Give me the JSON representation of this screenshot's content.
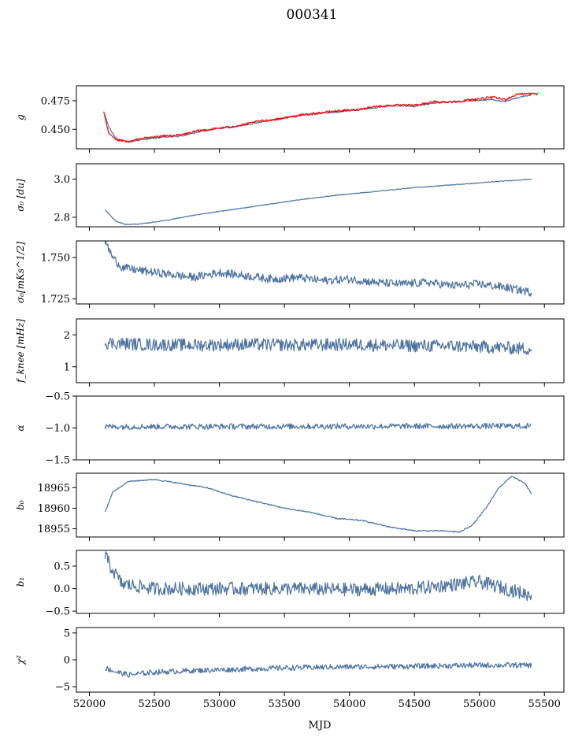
{
  "title": "000341",
  "colors": {
    "primary": "#4c72a0",
    "overlay": "#ff0000"
  },
  "chart_data": {
    "type": "line",
    "title": "000341",
    "xlabel": "MJD",
    "xlim": [
      51900,
      55650
    ],
    "xticks": [
      52000,
      52500,
      53000,
      53500,
      54000,
      54500,
      55000,
      55500
    ],
    "xtick_labels": [
      "52000",
      "52500",
      "53000",
      "53500",
      "54000",
      "54500",
      "55000",
      "55500"
    ],
    "x_start": 52120,
    "x_end": 55400,
    "panels": [
      {
        "id": "g",
        "ylabel": "g",
        "ylim": [
          0.433,
          0.488
        ],
        "yticks": [
          0.45,
          0.475
        ],
        "ytick_labels": [
          "0.450",
          "0.475"
        ],
        "series": [
          {
            "color": "#4c72a0",
            "noise": 0.0006,
            "x": [
              52120,
              52150,
              52200,
              52250,
              52300,
              52400,
              52550,
              52700,
              52850,
              53000,
              53150,
              53300,
              53450,
              53600,
              53750,
              53900,
              54050,
              54200,
              54350,
              54500,
              54650,
              54800,
              54950,
              55100,
              55200,
              55300,
              55400
            ],
            "y": [
              0.462,
              0.452,
              0.443,
              0.44,
              0.439,
              0.441,
              0.443,
              0.444,
              0.448,
              0.451,
              0.453,
              0.456,
              0.459,
              0.462,
              0.464,
              0.465,
              0.467,
              0.469,
              0.471,
              0.47,
              0.473,
              0.474,
              0.475,
              0.476,
              0.474,
              0.478,
              0.48
            ]
          },
          {
            "color": "#ff0000",
            "noise": 0.001,
            "x": [
              52110,
              52130,
              52150,
              52200,
              52250,
              52300,
              52400,
              52550,
              52700,
              52850,
              53000,
              53150,
              53300,
              53450,
              53600,
              53750,
              53900,
              54050,
              54200,
              54350,
              54500,
              54650,
              54800,
              54950,
              55100,
              55200,
              55300,
              55450
            ],
            "y": [
              0.465,
              0.455,
              0.446,
              0.441,
              0.44,
              0.439,
              0.442,
              0.444,
              0.445,
              0.449,
              0.451,
              0.453,
              0.457,
              0.459,
              0.462,
              0.464,
              0.466,
              0.467,
              0.47,
              0.471,
              0.471,
              0.474,
              0.474,
              0.476,
              0.478,
              0.476,
              0.481,
              0.481
            ]
          }
        ]
      },
      {
        "id": "sigma0",
        "ylabel": "σ₀ [du]",
        "ylim": [
          2.75,
          3.08
        ],
        "yticks": [
          2.8,
          3.0
        ],
        "ytick_labels": [
          "2.8",
          "3.0"
        ],
        "series": [
          {
            "color": "#4c72a0",
            "noise": 0.002,
            "x": [
              52120,
              52200,
              52280,
              52400,
              52600,
              52800,
              53000,
              53300,
              53600,
              53900,
              54200,
              54500,
              54800,
              55100,
              55400
            ],
            "y": [
              2.84,
              2.78,
              2.762,
              2.765,
              2.785,
              2.81,
              2.83,
              2.86,
              2.89,
              2.915,
              2.935,
              2.955,
              2.97,
              2.985,
              3.0
            ]
          }
        ]
      },
      {
        "id": "sigma0_mks",
        "ylabel": "σ₀[mKs^1/2]",
        "ylim": [
          1.722,
          1.76
        ],
        "yticks": [
          1.725,
          1.75
        ],
        "ytick_labels": [
          "1.725",
          "1.750"
        ],
        "series": [
          {
            "color": "#4c72a0",
            "noise": 0.0025,
            "x": [
              52120,
              52180,
              52250,
              52400,
              52600,
              52800,
              53000,
              53200,
              53400,
              53600,
              53800,
              54000,
              54200,
              54400,
              54600,
              54800,
              55000,
              55200,
              55400
            ],
            "y": [
              1.76,
              1.75,
              1.744,
              1.742,
              1.74,
              1.738,
              1.741,
              1.739,
              1.737,
              1.738,
              1.736,
              1.737,
              1.735,
              1.734,
              1.735,
              1.733,
              1.734,
              1.732,
              1.729
            ]
          }
        ]
      },
      {
        "id": "fknee",
        "ylabel": "f_knee [mHz]",
        "ylim": [
          0.5,
          2.5
        ],
        "yticks": [
          1,
          2
        ],
        "ytick_labels": [
          "1",
          "2"
        ],
        "series": [
          {
            "color": "#4c72a0",
            "noise": 0.2,
            "x": [
              52120,
              52400,
              52800,
              53200,
              53600,
              54000,
              54400,
              54800,
              55200,
              55400
            ],
            "y": [
              1.75,
              1.7,
              1.68,
              1.7,
              1.68,
              1.7,
              1.66,
              1.65,
              1.6,
              1.55
            ]
          }
        ]
      },
      {
        "id": "alpha",
        "ylabel": "α",
        "ylim": [
          -1.5,
          -0.5
        ],
        "yticks": [
          -1.5,
          -1.0,
          -0.5
        ],
        "ytick_labels": [
          "−1.5",
          "−1.0",
          "−0.5"
        ],
        "series": [
          {
            "color": "#4c72a0",
            "noise": 0.045,
            "x": [
              52120,
              55400
            ],
            "y": [
              -0.98,
              -0.97
            ]
          }
        ]
      },
      {
        "id": "b0",
        "ylabel": "b₀",
        "ylim": [
          18953,
          18968.5
        ],
        "yticks": [
          18955,
          18960,
          18965
        ],
        "ytick_labels": [
          "18955",
          "18960",
          "18965"
        ],
        "series": [
          {
            "color": "#4c72a0",
            "noise": 0.15,
            "x": [
              52120,
              52180,
              52300,
              52500,
              52700,
              52900,
              53100,
              53300,
              53500,
              53700,
              53900,
              54100,
              54300,
              54500,
              54700,
              54850,
              54950,
              55050,
              55150,
              55250,
              55350,
              55400
            ],
            "y": [
              18959,
              18964,
              18966.5,
              18967,
              18966,
              18965,
              18963,
              18961.5,
              18960,
              18959,
              18957.5,
              18957,
              18955.5,
              18954.5,
              18954.5,
              18954.2,
              18956,
              18960,
              18965,
              18967.8,
              18966,
              18963.5
            ]
          }
        ]
      },
      {
        "id": "b1",
        "ylabel": "b₁",
        "ylim": [
          -0.55,
          0.85
        ],
        "yticks": [
          -0.5,
          0.0,
          0.5
        ],
        "ytick_labels": [
          "−0.5",
          "0.0",
          "0.5"
        ],
        "series": [
          {
            "color": "#4c72a0",
            "noise": 0.15,
            "x": [
              52120,
              52160,
              52250,
              52500,
              53000,
              53500,
              54000,
              54500,
              55000,
              55200,
              55400
            ],
            "y": [
              0.75,
              0.5,
              0.1,
              0.0,
              0.0,
              0.0,
              -0.02,
              0.0,
              0.15,
              0.0,
              -0.15
            ]
          }
        ]
      },
      {
        "id": "chi2",
        "ylabel": "χ²",
        "ylim": [
          -6,
          6
        ],
        "yticks": [
          -5,
          0,
          5
        ],
        "ytick_labels": [
          "−5",
          "0",
          "5"
        ],
        "series": [
          {
            "color": "#4c72a0",
            "noise": 0.5,
            "x": [
              52120,
              52200,
              52300,
              52500,
              52800,
              53100,
              53500,
              54000,
              54500,
              55000,
              55400
            ],
            "y": [
              -1.5,
              -2.2,
              -2.8,
              -2.3,
              -2.0,
              -1.8,
              -1.5,
              -1.3,
              -1.2,
              -1.0,
              -1.0
            ]
          }
        ]
      }
    ]
  }
}
